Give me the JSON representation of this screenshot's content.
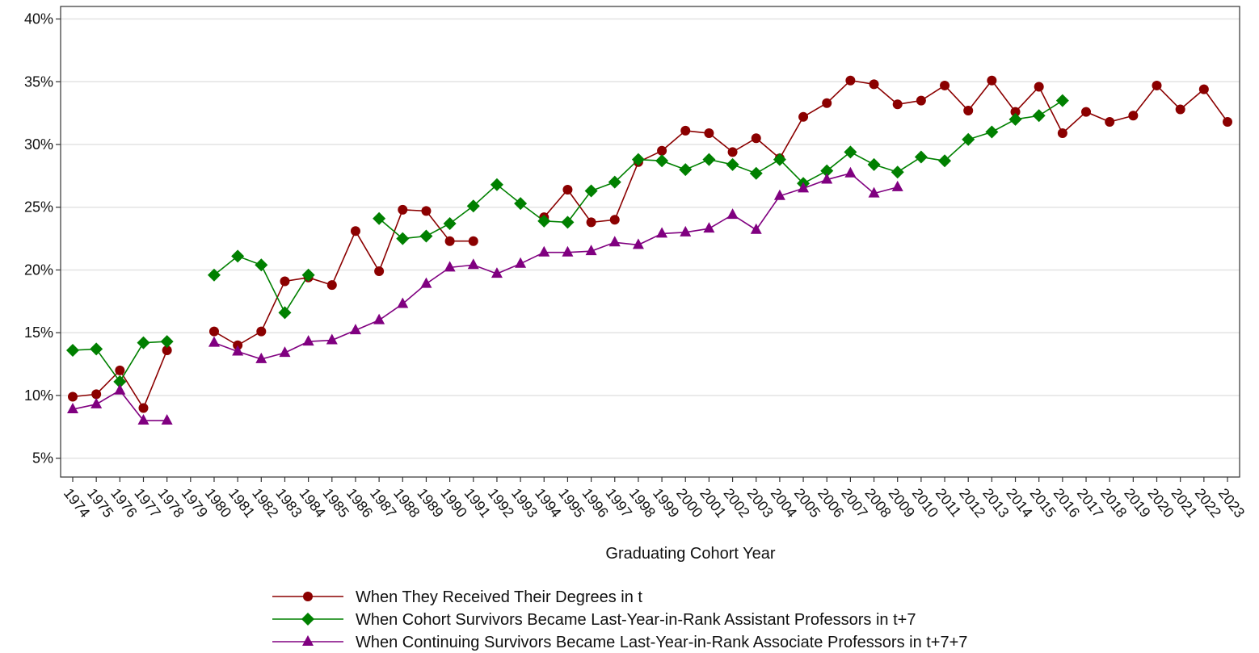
{
  "chart_data": {
    "type": "line",
    "xlabel": "Graduating Cohort Year",
    "ylabel": "",
    "ylim": [
      3.5,
      41
    ],
    "y_ticks": [
      5,
      10,
      15,
      20,
      25,
      30,
      35,
      40
    ],
    "y_tick_labels": [
      "5%",
      "10%",
      "15%",
      "20%",
      "25%",
      "30%",
      "35%",
      "40%"
    ],
    "x": [
      1974,
      1975,
      1976,
      1977,
      1978,
      1979,
      1980,
      1981,
      1982,
      1983,
      1984,
      1985,
      1986,
      1987,
      1988,
      1989,
      1990,
      1991,
      1992,
      1993,
      1994,
      1995,
      1996,
      1997,
      1998,
      1999,
      2000,
      2001,
      2002,
      2003,
      2004,
      2005,
      2006,
      2007,
      2008,
      2009,
      2010,
      2011,
      2012,
      2013,
      2014,
      2015,
      2016,
      2017,
      2018,
      2019,
      2020,
      2021,
      2022,
      2023
    ],
    "x_tick_labels": [
      "1974",
      "1975",
      "1976",
      "1977",
      "1978",
      "1979",
      "1980",
      "1981",
      "1982",
      "1983",
      "1984",
      "1985",
      "1986",
      "1987",
      "1988",
      "1989",
      "1990",
      "1991",
      "1992",
      "1993",
      "1994",
      "1995",
      "1996",
      "1997",
      "1998",
      "1999",
      "2000",
      "2001",
      "2002",
      "2003",
      "2004",
      "2005",
      "2006",
      "2007",
      "2008",
      "2009",
      "2010",
      "2011",
      "2012",
      "2013",
      "2014",
      "2015",
      "2016",
      "2017",
      "2018",
      "2019",
      "2020",
      "2021",
      "2022",
      "2023"
    ],
    "grid": "horizontal",
    "legend_position": "bottom",
    "series": [
      {
        "name": "When They Received Their Degrees in t",
        "color": "#8b0000",
        "marker": "circle",
        "segments": [
          {
            "x": [
              1974,
              1975,
              1976,
              1977,
              1978
            ],
            "y": [
              9.9,
              10.1,
              12.0,
              9.0,
              13.6
            ]
          },
          {
            "x": [
              1980,
              1981,
              1982,
              1983,
              1984,
              1985,
              1986,
              1987,
              1988,
              1989,
              1990,
              1991
            ],
            "y": [
              15.1,
              14.0,
              15.1,
              19.1,
              19.4,
              18.8,
              23.1,
              19.9,
              24.8,
              24.7,
              22.3,
              22.3
            ]
          },
          {
            "x": [
              1994,
              1995,
              1996,
              1997,
              1998,
              1999,
              2000,
              2001,
              2002,
              2003,
              2004,
              2005,
              2006,
              2007,
              2008,
              2009,
              2010,
              2011,
              2012,
              2013,
              2014,
              2015,
              2016,
              2017,
              2018,
              2019,
              2020,
              2021,
              2022,
              2023
            ],
            "y": [
              24.2,
              26.4,
              23.8,
              24.0,
              28.6,
              29.5,
              31.1,
              30.9,
              29.4,
              30.5,
              28.9,
              32.2,
              33.3,
              35.1,
              34.8,
              33.2,
              33.5,
              34.7,
              32.7,
              35.1,
              32.6,
              34.6,
              30.9,
              32.6,
              31.8,
              32.3,
              34.7,
              32.8,
              34.4,
              31.8
            ]
          }
        ]
      },
      {
        "name": "When Cohort Survivors Became Last-Year-in-Rank Assistant Professors in t+7",
        "color": "#008000",
        "marker": "diamond",
        "segments": [
          {
            "x": [
              1974,
              1975,
              1976,
              1977,
              1978
            ],
            "y": [
              13.6,
              13.7,
              11.1,
              14.2,
              14.3
            ]
          },
          {
            "x": [
              1980,
              1981,
              1982,
              1983,
              1984
            ],
            "y": [
              19.6,
              21.1,
              20.4,
              16.6,
              19.6
            ]
          },
          {
            "x": [
              1987,
              1988,
              1989,
              1990,
              1991,
              1992,
              1993,
              1994,
              1995,
              1996,
              1997,
              1998,
              1999,
              2000,
              2001,
              2002,
              2003,
              2004,
              2005,
              2006,
              2007,
              2008,
              2009,
              2010,
              2011,
              2012,
              2013,
              2014,
              2015,
              2016
            ],
            "y": [
              24.1,
              22.5,
              22.7,
              23.7,
              25.1,
              26.8,
              25.3,
              23.9,
              23.8,
              26.3,
              27.0,
              28.8,
              28.7,
              28.0,
              28.8,
              28.4,
              27.7,
              28.8,
              26.9,
              27.9,
              29.4,
              28.4,
              27.8,
              29.0,
              28.7,
              30.4,
              31.0,
              32.0,
              32.3,
              33.5
            ]
          }
        ]
      },
      {
        "name": "When Continuing Survivors Became Last-Year-in-Rank Associate Professors in t+7+7",
        "color": "#800080",
        "marker": "triangle",
        "segments": [
          {
            "x": [
              1974,
              1975,
              1976,
              1977,
              1978
            ],
            "y": [
              8.9,
              9.3,
              10.4,
              8.0,
              8.0
            ]
          },
          {
            "x": [
              1980,
              1981,
              1982,
              1983,
              1984,
              1985,
              1986,
              1987,
              1988,
              1989,
              1990,
              1991,
              1992,
              1993,
              1994,
              1995,
              1996,
              1997,
              1998,
              1999,
              2000,
              2001,
              2002,
              2003,
              2004,
              2005,
              2006,
              2007,
              2008,
              2009
            ],
            "y": [
              14.2,
              13.5,
              12.9,
              13.4,
              14.3,
              14.4,
              15.2,
              16.0,
              17.3,
              18.9,
              20.2,
              20.4,
              19.7,
              20.5,
              21.4,
              21.4,
              21.5,
              22.2,
              22.0,
              22.9,
              23.0,
              23.3,
              24.4,
              23.2,
              25.9,
              26.5,
              27.2,
              27.7,
              26.1,
              26.6
            ]
          }
        ]
      }
    ]
  }
}
